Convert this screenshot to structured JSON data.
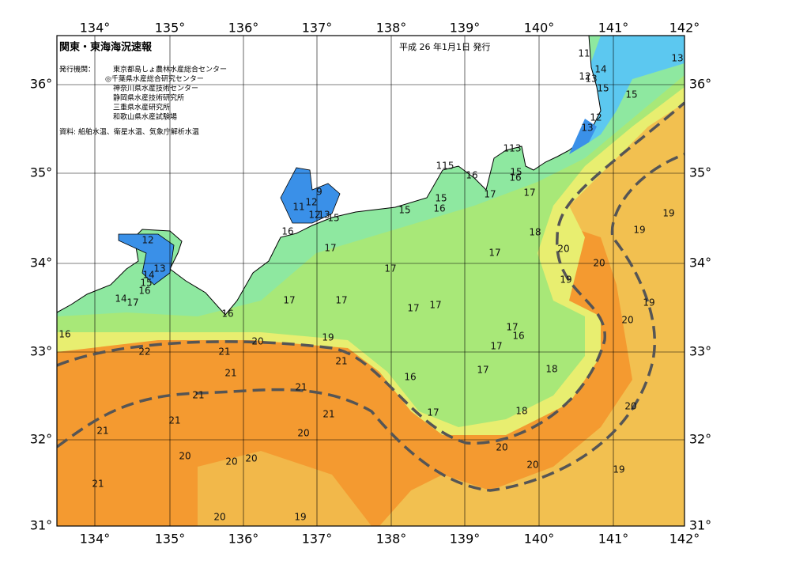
{
  "header": {
    "title": "関東・東海海況速報",
    "date": "平成 26 年1月1日 発行"
  },
  "issuers": {
    "label": "発行機関：",
    "names": [
      "東京都島しょ農林水産総合センター",
      "◎千葉県水産総合研究センター",
      "神奈川県水産技術センター",
      "静岡県水産技術研究所",
      "三重県水産研究所",
      "和歌山県水産試験場"
    ]
  },
  "source": "資料: 船舶水温、衛星水温、気象庁解析水温",
  "axes": {
    "lon": [
      "134°",
      "135°",
      "136°",
      "137°",
      "138°",
      "139°",
      "140°",
      "141°",
      "142°"
    ],
    "lat": [
      "36°",
      "35°",
      "34°",
      "33°",
      "32°",
      "31°"
    ]
  },
  "contour_labels": [
    "11",
    "14",
    "12",
    "13",
    "15",
    "15",
    "12",
    "13",
    "13",
    "113",
    "15",
    "16",
    "17",
    "115",
    "16",
    "17",
    "15",
    "16",
    "15",
    "11",
    "12",
    "9",
    "12",
    "13",
    "15",
    "16",
    "12",
    "13",
    "14",
    "15",
    "16",
    "14",
    "17",
    "16",
    "16",
    "17",
    "17",
    "17",
    "17",
    "17",
    "17",
    "17",
    "18",
    "20",
    "20",
    "19",
    "19",
    "19",
    "19",
    "20",
    "17",
    "16",
    "17",
    "17",
    "18",
    "16",
    "17",
    "18",
    "20",
    "19",
    "22",
    "21",
    "21",
    "21",
    "21",
    "21",
    "21",
    "21",
    "21",
    "20",
    "20",
    "20",
    "20",
    "20",
    "20",
    "20",
    "19",
    "21",
    "20",
    "19"
  ]
}
